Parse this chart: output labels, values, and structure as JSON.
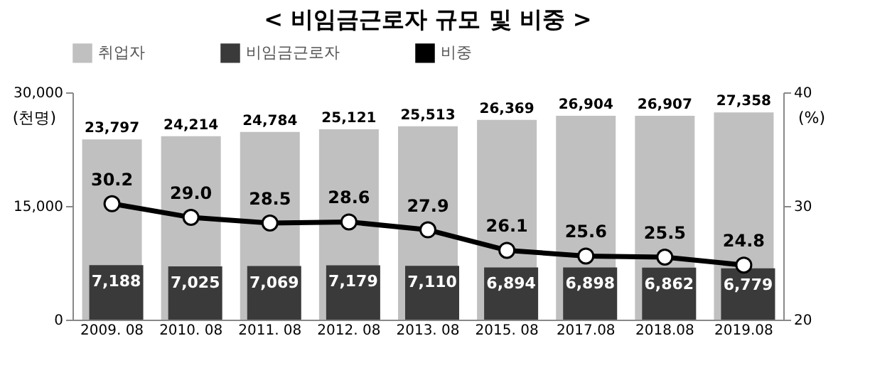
{
  "chart_data": {
    "type": "bar",
    "title": "< 비임금근로자 규모 및 비중 >",
    "categories": [
      "2009. 08",
      "2010. 08",
      "2011. 08",
      "2012. 08",
      "2013. 08",
      "2015. 08",
      "2017.08",
      "2018.08",
      "2019.08"
    ],
    "series": [
      {
        "name": "취업자",
        "color": "#c0c0c0",
        "values": [
          23797,
          24214,
          24784,
          25121,
          25513,
          26369,
          26904,
          26907,
          27358
        ],
        "value_labels": [
          "23,797",
          "24,214",
          "24,784",
          "25,121",
          "25,513",
          "26,369",
          "26,904",
          "26,907",
          "27,358"
        ]
      },
      {
        "name": "비임금근로자",
        "color": "#3a3a3a",
        "values": [
          7188,
          7025,
          7069,
          7179,
          7110,
          6894,
          6898,
          6862,
          6779
        ],
        "value_labels": [
          "7,188",
          "7,025",
          "7,069",
          "7,179",
          "7,110",
          "6,894",
          "6,898",
          "6,862",
          "6,779"
        ]
      },
      {
        "name": "비중",
        "type": "line",
        "axis": "y2",
        "color": "#000000",
        "marker": "circle",
        "values": [
          30.2,
          29.0,
          28.5,
          28.6,
          27.9,
          26.1,
          25.6,
          25.5,
          24.8
        ],
        "value_labels": [
          "30.2",
          "29.0",
          "28.5",
          "28.6",
          "27.9",
          "26.1",
          "25.6",
          "25.5",
          "24.8"
        ]
      }
    ],
    "ylabel": "(천명)",
    "y2label": "(%)",
    "ylim": [
      0,
      30000
    ],
    "yticks": [
      0,
      {
        "value": 15000,
        "label": "15,000"
      },
      {
        "value": 30000,
        "label": "30,000"
      }
    ],
    "y2lim": [
      20,
      40
    ],
    "y2ticks": [
      20,
      30,
      40
    ],
    "legend": "top",
    "grid": false
  }
}
